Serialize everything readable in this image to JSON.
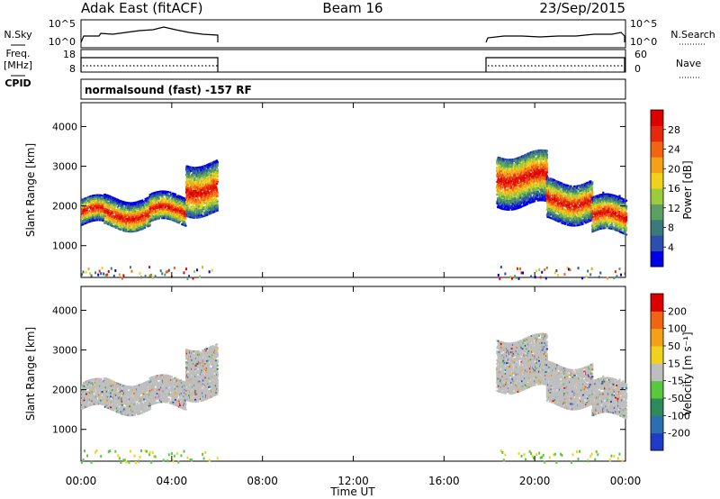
{
  "header": {
    "station": "Adak East (fitACF)",
    "beam": "Beam 16",
    "date": "23/Sep/2015"
  },
  "side_labels": {
    "nsky": "N.Sky",
    "nsearch": "N.Search",
    "freq": "Freq.",
    "mhz": "[MHz]",
    "nave": "Nave",
    "cpid": "CPID",
    "cpid_text": "normalsound (fast) -157 RF"
  },
  "noise_ticks_left": [
    "10^5",
    "10^0"
  ],
  "noise_ticks_right": [
    "10^5",
    "10^0"
  ],
  "freq_ticks_left": [
    "18",
    "8"
  ],
  "nave_ticks_right": [
    "60",
    "0"
  ],
  "chart_data": [
    {
      "type": "heatmap",
      "name": "power",
      "ylabel": "Slant Range [km]",
      "ylim": [
        200,
        4600
      ],
      "yticks": [
        "1000",
        "2000",
        "3000",
        "4000"
      ],
      "colorbar_label": "Power [dB]",
      "colorbar_ticks": [
        "4",
        "8",
        "12",
        "16",
        "20",
        "24",
        "28"
      ],
      "colors": [
        "#0000e6",
        "#2b4fb0",
        "#3a7a7a",
        "#5aa060",
        "#9ccc3c",
        "#f0d21e",
        "#f5a019",
        "#f06414",
        "#e6280f",
        "#dc0000"
      ],
      "segments": [
        {
          "x": [
            0,
            6
          ],
          "bands": [
            {
              "x": [
                0,
                1.0
              ],
              "range": [
                1500,
                2150
              ],
              "peak": 1820
            },
            {
              "x": [
                1.0,
                3.0
              ],
              "range": [
                1450,
                2200
              ],
              "peak": 1750
            },
            {
              "x": [
                3.0,
                4.6
              ],
              "range": [
                1550,
                2250
              ],
              "peak": 1850
            },
            {
              "x": [
                4.6,
                6.0
              ],
              "range": [
                1800,
                3100
              ],
              "peak": 2400
            }
          ]
        },
        {
          "x": [
            18,
            24
          ],
          "bands": [
            {
              "x": [
                18.3,
                20.5
              ],
              "range": [
                2000,
                3300
              ],
              "peak": 2700
            },
            {
              "x": [
                20.5,
                22.5
              ],
              "range": [
                1600,
                2600
              ],
              "peak": 2100
            },
            {
              "x": [
                22.5,
                24.0
              ],
              "range": [
                1300,
                2200
              ],
              "peak": 1700
            }
          ]
        }
      ]
    },
    {
      "type": "heatmap",
      "name": "velocity",
      "ylabel": "Slant Range [km]",
      "ylim": [
        200,
        4600
      ],
      "yticks": [
        "1000",
        "2000",
        "3000",
        "4000"
      ],
      "colorbar_label": "Velocity [m s⁻¹]",
      "colorbar_ticks": [
        "200",
        "100",
        "50",
        "15",
        "-15",
        "-50",
        "-100",
        "-200"
      ],
      "colors": [
        "#1e3cc8",
        "#2b6fb0",
        "#2f8a5a",
        "#5ac83c",
        "#bebebe",
        "#f0d21e",
        "#f5a019",
        "#f06414",
        "#dc0000"
      ]
    }
  ],
  "xaxis": {
    "label": "Time UT",
    "ticks": [
      "00:00",
      "04:00",
      "08:00",
      "12:00",
      "16:00",
      "20:00",
      "00:00"
    ],
    "range": [
      0,
      24
    ]
  }
}
